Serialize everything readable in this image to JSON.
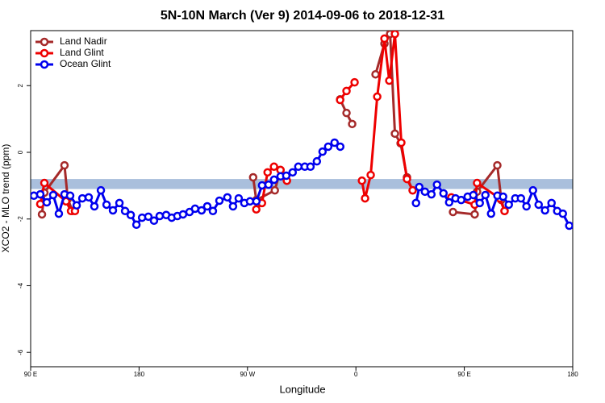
{
  "chart_data": {
    "type": "line",
    "title": "5N-10N March (Ver 9)   2014-09-06 to 2018-12-31",
    "x_label": "Longitude",
    "y_label": "XCO2 - MLO trend (ppm)",
    "xlim": [
      90,
      540
    ],
    "xticks": [
      {
        "value": 90,
        "label": "90 E"
      },
      180,
      {
        "value": 270,
        "label": "90 W"
      },
      {
        "value": 360,
        "label": "0"
      },
      {
        "value": 450,
        "label": "90 E"
      },
      {
        "value": 540,
        "label": "180"
      }
    ],
    "ylim": [
      -6.43,
      3.65
    ],
    "yticks": [
      -6,
      -4,
      -2,
      0,
      2
    ],
    "band": {
      "lower": -1.1,
      "upper": -0.8,
      "color": "#a9bfdc"
    },
    "legend": "top-left",
    "series": [
      {
        "name": "Land Nadir",
        "color": "#a52a2a",
        "x": [
          99.4,
          101.4,
          118.1,
          120.8,
          124.8,
          null,
          274.7,
          277.3,
          292.7,
          297.4,
          302.7,
          null,
          346.9,
          352.2,
          356.9,
          null,
          376.3,
          383.7,
          388.4,
          392.4,
          397.1,
          402.4,
          407.1,
          null,
          440.6,
          458.6,
          460.6,
          477.4,
          480.7,
          483.4
        ],
        "values": [
          -1.86,
          -1.21,
          -0.39,
          -1.4,
          -1.76,
          null,
          -0.75,
          -1.43,
          -1.14,
          -0.53,
          -0.85,
          null,
          1.59,
          1.18,
          0.85,
          null,
          2.34,
          3.26,
          3.55,
          0.56,
          0.27,
          -0.75,
          -1.14,
          null,
          -1.79,
          -1.86,
          -1.18,
          -0.39,
          -1.43,
          -1.76
        ]
      },
      {
        "name": "Land Glint",
        "color": "#ee0000",
        "x": [
          98.0,
          101.4,
          119.4,
          123.5,
          126.8,
          null,
          277.3,
          282.0,
          286.7,
          292.0,
          297.4,
          302.7,
          null,
          346.9,
          352.2,
          358.9,
          null,
          365.0,
          367.6,
          372.3,
          377.7,
          383.7,
          387.7,
          392.4,
          397.7,
          402.4,
          407.1,
          null,
          439.2,
          458.6,
          460.6,
          479.4,
          483.4
        ],
        "values": [
          -1.55,
          -0.92,
          -1.47,
          -1.76,
          -1.76,
          null,
          -1.71,
          -1.52,
          -0.6,
          -0.43,
          -0.53,
          -0.85,
          null,
          1.57,
          1.84,
          2.1,
          null,
          -0.85,
          -1.38,
          -0.68,
          1.67,
          3.41,
          2.15,
          3.55,
          0.29,
          -0.8,
          -1.14,
          null,
          -1.35,
          -1.57,
          -0.92,
          -1.38,
          -1.76
        ]
      },
      {
        "name": "Ocean Glint",
        "color": "#0000ee",
        "x": [
          92.7,
          98.0,
          103.4,
          108.7,
          113.4,
          118.1,
          122.8,
          128.2,
          132.9,
          138.2,
          142.9,
          148.3,
          153.0,
          158.3,
          163.7,
          168.4,
          173.1,
          177.8,
          182.5,
          187.7,
          192.4,
          197.1,
          202.5,
          207.1,
          211.8,
          216.5,
          221.9,
          226.5,
          231.9,
          236.6,
          241.3,
          246.7,
          253.3,
          258.0,
          262.7,
          267.4,
          272.1,
          277.4,
          282.1,
          287.5,
          292.1,
          297.5,
          302.2,
          307.5,
          312.2,
          317.6,
          322.3,
          327.6,
          332.3,
          337.0,
          342.3,
          347.0,
          null,
          409.9,
          412.6,
          417.3,
          422.7,
          427.3,
          432.7,
          437.4,
          442.7,
          447.4,
          452.8,
          457.5,
          462.8,
          467.5,
          472.2,
          477.5,
          482.2,
          486.9,
          492.3,
          497.0,
          501.6,
          507.0,
          511.7,
          517.0,
          522.4,
          527.1,
          531.8,
          537.1
        ],
        "values": [
          -1.3,
          -1.26,
          -1.5,
          -1.28,
          -1.84,
          -1.26,
          -1.3,
          -1.59,
          -1.38,
          -1.35,
          -1.62,
          -1.14,
          -1.57,
          -1.74,
          -1.52,
          -1.76,
          -1.88,
          -2.17,
          -1.96,
          -1.93,
          -2.05,
          -1.91,
          -1.88,
          -1.96,
          -1.91,
          -1.86,
          -1.79,
          -1.69,
          -1.74,
          -1.62,
          -1.76,
          -1.45,
          -1.35,
          -1.62,
          -1.38,
          -1.52,
          -1.47,
          -1.47,
          -0.99,
          -0.97,
          -0.82,
          -0.72,
          -0.7,
          -0.6,
          -0.43,
          -0.43,
          -0.43,
          -0.27,
          0.02,
          0.17,
          0.29,
          0.17,
          null,
          -1.52,
          -1.04,
          -1.18,
          -1.26,
          -0.97,
          -1.23,
          -1.5,
          -1.38,
          -1.43,
          -1.33,
          -1.28,
          -1.52,
          -1.28,
          -1.84,
          -1.3,
          -1.33,
          -1.57,
          -1.38,
          -1.38,
          -1.62,
          -1.14,
          -1.57,
          -1.74,
          -1.52,
          -1.76,
          -1.84,
          -2.2
        ]
      }
    ]
  }
}
